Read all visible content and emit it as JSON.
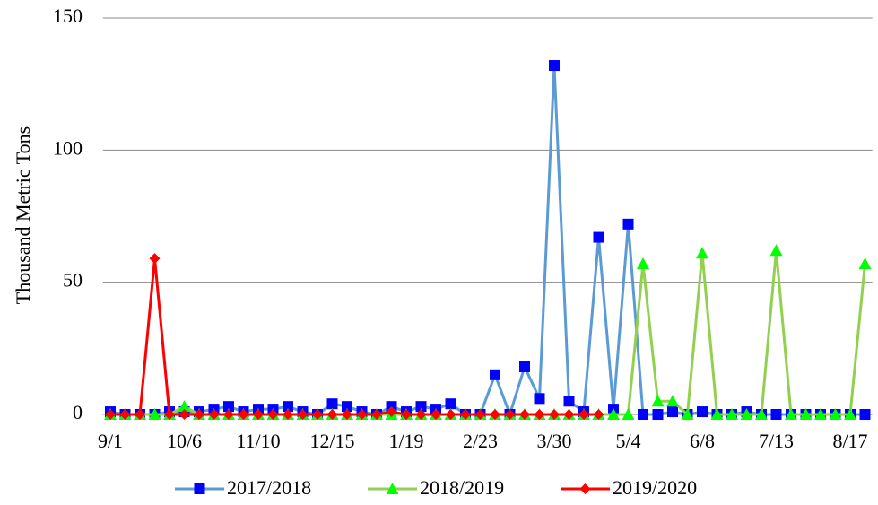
{
  "chart_data": {
    "type": "line",
    "y_label": "Thousand Metric Tons",
    "categories": [
      "9/1",
      null,
      null,
      null,
      null,
      "10/6",
      null,
      null,
      null,
      null,
      "11/10",
      null,
      null,
      null,
      null,
      "12/15",
      null,
      null,
      null,
      null,
      "1/19",
      null,
      null,
      null,
      null,
      "2/23",
      null,
      null,
      null,
      null,
      "3/30",
      null,
      null,
      null,
      null,
      "5/4",
      null,
      null,
      null,
      null,
      "6/8",
      null,
      null,
      null,
      null,
      "7/13",
      null,
      null,
      null,
      null,
      "8/17",
      null
    ],
    "series": [
      {
        "name": "2017/2018",
        "color": "#5b9bd5",
        "marker_color": "#0000ff",
        "marker": "square",
        "values": [
          1,
          0,
          0,
          0,
          1,
          1,
          1,
          2,
          3,
          1,
          2,
          2,
          3,
          1,
          0,
          4,
          3,
          1,
          0,
          3,
          1,
          3,
          2,
          4,
          0,
          0,
          15,
          0,
          18,
          6,
          132,
          5,
          1,
          67,
          2,
          72,
          0,
          0,
          1,
          0,
          1,
          0,
          0,
          1,
          0,
          0,
          0,
          0,
          0,
          0,
          0,
          0
        ]
      },
      {
        "name": "2018/2019",
        "color": "#92d050",
        "marker_color": "#00ff00",
        "marker": "triangle",
        "values": [
          0,
          0,
          0,
          0,
          0,
          3,
          0,
          0,
          0,
          0,
          0,
          0,
          0,
          0,
          0,
          0,
          0,
          0,
          0,
          0,
          0,
          0,
          0,
          0,
          0,
          0,
          0,
          0,
          0,
          0,
          0,
          0,
          0,
          0,
          0,
          0,
          57,
          5,
          5,
          0,
          61,
          0,
          0,
          0,
          0,
          62,
          0,
          0,
          0,
          0,
          0,
          57
        ]
      },
      {
        "name": "2019/2020",
        "color": "#ff0000",
        "marker_color": "#ff0000",
        "marker": "diamond",
        "values": [
          0,
          0,
          0,
          59,
          0,
          0,
          0,
          0,
          0,
          0,
          0,
          0,
          0,
          0,
          0,
          0,
          0,
          0,
          0,
          1,
          0,
          0,
          0,
          0,
          0,
          0,
          0,
          0,
          0,
          0,
          0,
          0,
          0,
          0,
          null,
          null,
          null,
          null,
          null,
          null,
          null,
          null,
          null,
          null,
          null,
          null,
          null,
          null,
          null,
          null,
          null,
          null
        ]
      }
    ],
    "ylim": [
      0,
      150
    ],
    "yticks": [
      0,
      50,
      100,
      150
    ],
    "grid": true,
    "legend": "bottom"
  }
}
